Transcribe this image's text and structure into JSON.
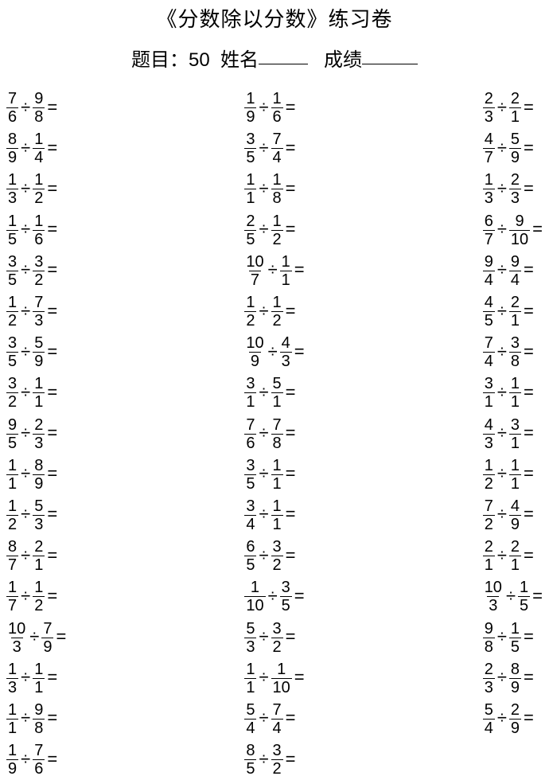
{
  "title": "《分数除以分数》练习卷",
  "sub_label_items": "题目：",
  "item_count": "50",
  "name_label": "姓名",
  "score_label": "成绩",
  "op": "÷",
  "eq": "=",
  "columns": [
    [
      {
        "a": {
          "n": "7",
          "d": "6"
        },
        "b": {
          "n": "9",
          "d": "8"
        }
      },
      {
        "a": {
          "n": "8",
          "d": "9"
        },
        "b": {
          "n": "1",
          "d": "4"
        }
      },
      {
        "a": {
          "n": "1",
          "d": "3"
        },
        "b": {
          "n": "1",
          "d": "2"
        }
      },
      {
        "a": {
          "n": "1",
          "d": "5"
        },
        "b": {
          "n": "1",
          "d": "6"
        }
      },
      {
        "a": {
          "n": "3",
          "d": "5"
        },
        "b": {
          "n": "3",
          "d": "2"
        }
      },
      {
        "a": {
          "n": "1",
          "d": "2"
        },
        "b": {
          "n": "7",
          "d": "3"
        }
      },
      {
        "a": {
          "n": "3",
          "d": "5"
        },
        "b": {
          "n": "5",
          "d": "9"
        }
      },
      {
        "a": {
          "n": "3",
          "d": "2"
        },
        "b": {
          "n": "1",
          "d": "1"
        }
      },
      {
        "a": {
          "n": "9",
          "d": "5"
        },
        "b": {
          "n": "2",
          "d": "3"
        }
      },
      {
        "a": {
          "n": "1",
          "d": "1"
        },
        "b": {
          "n": "8",
          "d": "9"
        }
      },
      {
        "a": {
          "n": "1",
          "d": "2"
        },
        "b": {
          "n": "5",
          "d": "3"
        }
      },
      {
        "a": {
          "n": "8",
          "d": "7"
        },
        "b": {
          "n": "2",
          "d": "1"
        }
      },
      {
        "a": {
          "n": "1",
          "d": "7"
        },
        "b": {
          "n": "1",
          "d": "2"
        }
      },
      {
        "a": {
          "n": "10",
          "d": "3"
        },
        "b": {
          "n": "7",
          "d": "9"
        }
      },
      {
        "a": {
          "n": "1",
          "d": "3"
        },
        "b": {
          "n": "1",
          "d": "1"
        }
      },
      {
        "a": {
          "n": "1",
          "d": "1"
        },
        "b": {
          "n": "9",
          "d": "8"
        }
      },
      {
        "a": {
          "n": "1",
          "d": "9"
        },
        "b": {
          "n": "7",
          "d": "6"
        }
      }
    ],
    [
      {
        "a": {
          "n": "1",
          "d": "9"
        },
        "b": {
          "n": "1",
          "d": "6"
        }
      },
      {
        "a": {
          "n": "3",
          "d": "5"
        },
        "b": {
          "n": "7",
          "d": "4"
        }
      },
      {
        "a": {
          "n": "1",
          "d": "1"
        },
        "b": {
          "n": "1",
          "d": "8"
        }
      },
      {
        "a": {
          "n": "2",
          "d": "5"
        },
        "b": {
          "n": "1",
          "d": "2"
        }
      },
      {
        "a": {
          "n": "10",
          "d": "7"
        },
        "b": {
          "n": "1",
          "d": "1"
        }
      },
      {
        "a": {
          "n": "1",
          "d": "2"
        },
        "b": {
          "n": "1",
          "d": "2"
        }
      },
      {
        "a": {
          "n": "10",
          "d": "9"
        },
        "b": {
          "n": "4",
          "d": "3"
        }
      },
      {
        "a": {
          "n": "3",
          "d": "1"
        },
        "b": {
          "n": "5",
          "d": "1"
        }
      },
      {
        "a": {
          "n": "7",
          "d": "6"
        },
        "b": {
          "n": "7",
          "d": "8"
        }
      },
      {
        "a": {
          "n": "3",
          "d": "5"
        },
        "b": {
          "n": "1",
          "d": "1"
        }
      },
      {
        "a": {
          "n": "3",
          "d": "4"
        },
        "b": {
          "n": "1",
          "d": "1"
        }
      },
      {
        "a": {
          "n": "6",
          "d": "5"
        },
        "b": {
          "n": "3",
          "d": "2"
        }
      },
      {
        "a": {
          "n": "1",
          "d": "10"
        },
        "b": {
          "n": "3",
          "d": "5"
        }
      },
      {
        "a": {
          "n": "5",
          "d": "3"
        },
        "b": {
          "n": "3",
          "d": "2"
        }
      },
      {
        "a": {
          "n": "1",
          "d": "1"
        },
        "b": {
          "n": "1",
          "d": "10"
        }
      },
      {
        "a": {
          "n": "5",
          "d": "4"
        },
        "b": {
          "n": "7",
          "d": "4"
        }
      },
      {
        "a": {
          "n": "8",
          "d": "5"
        },
        "b": {
          "n": "3",
          "d": "2"
        }
      }
    ],
    [
      {
        "a": {
          "n": "2",
          "d": "3"
        },
        "b": {
          "n": "2",
          "d": "1"
        }
      },
      {
        "a": {
          "n": "4",
          "d": "7"
        },
        "b": {
          "n": "5",
          "d": "9"
        }
      },
      {
        "a": {
          "n": "1",
          "d": "3"
        },
        "b": {
          "n": "2",
          "d": "3"
        }
      },
      {
        "a": {
          "n": "6",
          "d": "7"
        },
        "b": {
          "n": "9",
          "d": "10"
        }
      },
      {
        "a": {
          "n": "9",
          "d": "4"
        },
        "b": {
          "n": "9",
          "d": "4"
        }
      },
      {
        "a": {
          "n": "4",
          "d": "5"
        },
        "b": {
          "n": "2",
          "d": "1"
        }
      },
      {
        "a": {
          "n": "7",
          "d": "4"
        },
        "b": {
          "n": "3",
          "d": "8"
        }
      },
      {
        "a": {
          "n": "3",
          "d": "1"
        },
        "b": {
          "n": "1",
          "d": "1"
        }
      },
      {
        "a": {
          "n": "4",
          "d": "3"
        },
        "b": {
          "n": "3",
          "d": "1"
        }
      },
      {
        "a": {
          "n": "1",
          "d": "2"
        },
        "b": {
          "n": "1",
          "d": "1"
        }
      },
      {
        "a": {
          "n": "7",
          "d": "2"
        },
        "b": {
          "n": "4",
          "d": "9"
        }
      },
      {
        "a": {
          "n": "2",
          "d": "1"
        },
        "b": {
          "n": "2",
          "d": "1"
        }
      },
      {
        "a": {
          "n": "10",
          "d": "3"
        },
        "b": {
          "n": "1",
          "d": "5"
        }
      },
      {
        "a": {
          "n": "9",
          "d": "8"
        },
        "b": {
          "n": "1",
          "d": "5"
        }
      },
      {
        "a": {
          "n": "2",
          "d": "3"
        },
        "b": {
          "n": "8",
          "d": "9"
        }
      },
      {
        "a": {
          "n": "5",
          "d": "4"
        },
        "b": {
          "n": "2",
          "d": "9"
        }
      }
    ]
  ]
}
